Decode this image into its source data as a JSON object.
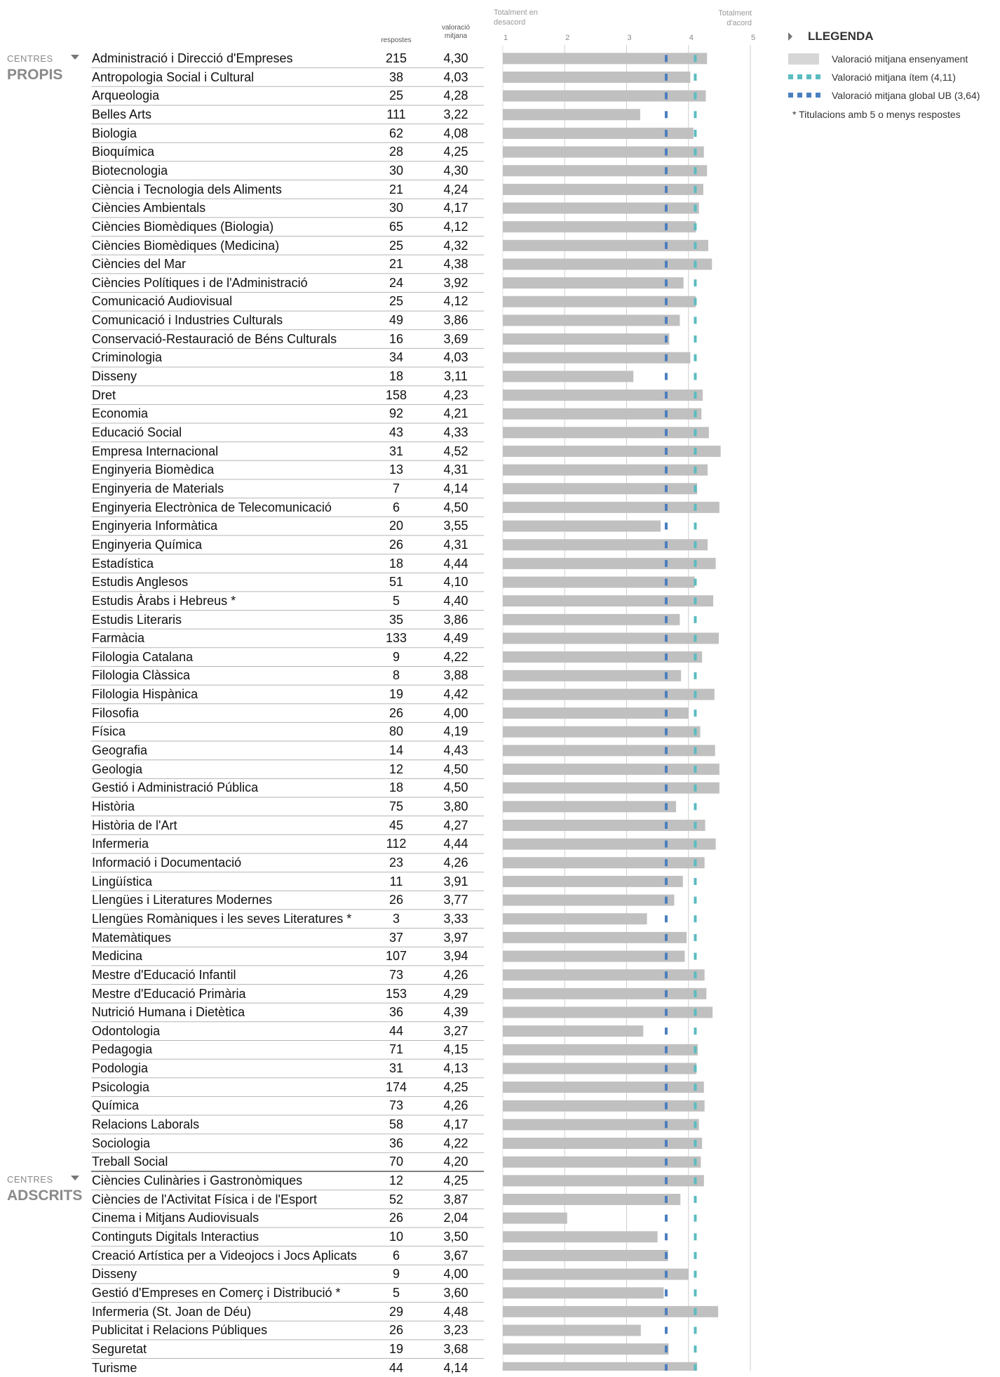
{
  "headers": {
    "respostes": "respostes",
    "valoracio_line1": "valoració",
    "valoracio_line2": "mitjana",
    "left_axis_line1": "Totalment en",
    "left_axis_line2": "desacord",
    "right_axis_line1": "Totalment",
    "right_axis_line2": "d'acord"
  },
  "sections": {
    "propis_small": "CENTRES",
    "propis_big": "PROPIS",
    "adscrits_small": "CENTRES",
    "adscrits_big": "ADSCRITS"
  },
  "legend": {
    "title": "LLEGENDA",
    "bar_label": "Valoració mitjana ensenyament",
    "item_label": "Valoració mitjana ítem (4,11)",
    "global_label": "Valoració mitjana global UB (3,64)",
    "note": "* Titulacions amb 5 o menys respostes"
  },
  "colors": {
    "bar": "#c0c0c0",
    "item_marker": "#5bbcc0",
    "global_marker": "#4b7fbf",
    "grid": "#cfcfcf",
    "separator": "#b5b5b5"
  },
  "chart_data": {
    "type": "bar",
    "orientation": "horizontal",
    "xlim": [
      1,
      5
    ],
    "ticks": [
      "1",
      "2",
      "3",
      "4",
      "5"
    ],
    "item_mean": 4.11,
    "global_mean": 3.64,
    "groups": [
      {
        "name": "PROPIS",
        "rows": [
          {
            "name": "Administració i Direcció d'Empreses",
            "n": "215",
            "mean": "4,30",
            "value": 4.3
          },
          {
            "name": "Antropologia Social i Cultural",
            "n": "38",
            "mean": "4,03",
            "value": 4.03
          },
          {
            "name": "Arqueologia",
            "n": "25",
            "mean": "4,28",
            "value": 4.28
          },
          {
            "name": "Belles Arts",
            "n": "111",
            "mean": "3,22",
            "value": 3.22
          },
          {
            "name": "Biologia",
            "n": "62",
            "mean": "4,08",
            "value": 4.08
          },
          {
            "name": "Bioquímica",
            "n": "28",
            "mean": "4,25",
            "value": 4.25
          },
          {
            "name": "Biotecnologia",
            "n": "30",
            "mean": "4,30",
            "value": 4.3
          },
          {
            "name": "Ciència i Tecnologia dels Aliments",
            "n": "21",
            "mean": "4,24",
            "value": 4.24
          },
          {
            "name": "Ciències Ambientals",
            "n": "30",
            "mean": "4,17",
            "value": 4.17
          },
          {
            "name": "Ciències Biomèdiques (Biologia)",
            "n": "65",
            "mean": "4,12",
            "value": 4.12
          },
          {
            "name": "Ciències Biomèdiques (Medicina)",
            "n": "25",
            "mean": "4,32",
            "value": 4.32
          },
          {
            "name": "Ciències del Mar",
            "n": "21",
            "mean": "4,38",
            "value": 4.38
          },
          {
            "name": "Ciències Polítiques i de l'Administració",
            "n": "24",
            "mean": "3,92",
            "value": 3.92
          },
          {
            "name": "Comunicació Audiovisual",
            "n": "25",
            "mean": "4,12",
            "value": 4.12
          },
          {
            "name": "Comunicació i Industries Culturals",
            "n": "49",
            "mean": "3,86",
            "value": 3.86
          },
          {
            "name": "Conservació-Restauració de Béns Culturals",
            "n": "16",
            "mean": "3,69",
            "value": 3.69
          },
          {
            "name": "Criminologia",
            "n": "34",
            "mean": "4,03",
            "value": 4.03
          },
          {
            "name": "Disseny",
            "n": "18",
            "mean": "3,11",
            "value": 3.11
          },
          {
            "name": "Dret",
            "n": "158",
            "mean": "4,23",
            "value": 4.23
          },
          {
            "name": "Economia",
            "n": "92",
            "mean": "4,21",
            "value": 4.21
          },
          {
            "name": "Educació Social",
            "n": "43",
            "mean": "4,33",
            "value": 4.33
          },
          {
            "name": "Empresa Internacional",
            "n": "31",
            "mean": "4,52",
            "value": 4.52
          },
          {
            "name": "Enginyeria Biomèdica",
            "n": "13",
            "mean": "4,31",
            "value": 4.31
          },
          {
            "name": "Enginyeria de Materials",
            "n": "7",
            "mean": "4,14",
            "value": 4.14
          },
          {
            "name": "Enginyeria Electrònica de Telecomunicació",
            "n": "6",
            "mean": "4,50",
            "value": 4.5
          },
          {
            "name": "Enginyeria Informàtica",
            "n": "20",
            "mean": "3,55",
            "value": 3.55
          },
          {
            "name": "Enginyeria Química",
            "n": "26",
            "mean": "4,31",
            "value": 4.31
          },
          {
            "name": "Estadística",
            "n": "18",
            "mean": "4,44",
            "value": 4.44
          },
          {
            "name": "Estudis Anglesos",
            "n": "51",
            "mean": "4,10",
            "value": 4.1
          },
          {
            "name": "Estudis Àrabs i Hebreus *",
            "n": "5",
            "mean": "4,40",
            "value": 4.4
          },
          {
            "name": "Estudis Literaris",
            "n": "35",
            "mean": "3,86",
            "value": 3.86
          },
          {
            "name": "Farmàcia",
            "n": "133",
            "mean": "4,49",
            "value": 4.49
          },
          {
            "name": "Filologia Catalana",
            "n": "9",
            "mean": "4,22",
            "value": 4.22
          },
          {
            "name": "Filologia Clàssica",
            "n": "8",
            "mean": "3,88",
            "value": 3.88
          },
          {
            "name": "Filologia Hispànica",
            "n": "19",
            "mean": "4,42",
            "value": 4.42
          },
          {
            "name": "Filosofia",
            "n": "26",
            "mean": "4,00",
            "value": 4.0
          },
          {
            "name": "Física",
            "n": "80",
            "mean": "4,19",
            "value": 4.19
          },
          {
            "name": "Geografia",
            "n": "14",
            "mean": "4,43",
            "value": 4.43
          },
          {
            "name": "Geologia",
            "n": "12",
            "mean": "4,50",
            "value": 4.5
          },
          {
            "name": "Gestió i Administració Pública",
            "n": "18",
            "mean": "4,50",
            "value": 4.5
          },
          {
            "name": "Història",
            "n": "75",
            "mean": "3,80",
            "value": 3.8
          },
          {
            "name": "Història de l'Art",
            "n": "45",
            "mean": "4,27",
            "value": 4.27
          },
          {
            "name": "Infermeria",
            "n": "112",
            "mean": "4,44",
            "value": 4.44
          },
          {
            "name": "Informació i Documentació",
            "n": "23",
            "mean": "4,26",
            "value": 4.26
          },
          {
            "name": "Lingüística",
            "n": "11",
            "mean": "3,91",
            "value": 3.91
          },
          {
            "name": "Llengües i Literatures Modernes",
            "n": "26",
            "mean": "3,77",
            "value": 3.77
          },
          {
            "name": "Llengües Romàniques i les seves Literatures *",
            "n": "3",
            "mean": "3,33",
            "value": 3.33
          },
          {
            "name": "Matemàtiques",
            "n": "37",
            "mean": "3,97",
            "value": 3.97
          },
          {
            "name": "Medicina",
            "n": "107",
            "mean": "3,94",
            "value": 3.94
          },
          {
            "name": "Mestre d'Educació Infantil",
            "n": "73",
            "mean": "4,26",
            "value": 4.26
          },
          {
            "name": "Mestre d'Educació Primària",
            "n": "153",
            "mean": "4,29",
            "value": 4.29
          },
          {
            "name": "Nutrició Humana i Dietètica",
            "n": "36",
            "mean": "4,39",
            "value": 4.39
          },
          {
            "name": "Odontologia",
            "n": "44",
            "mean": "3,27",
            "value": 3.27
          },
          {
            "name": "Pedagogia",
            "n": "71",
            "mean": "4,15",
            "value": 4.15
          },
          {
            "name": "Podologia",
            "n": "31",
            "mean": "4,13",
            "value": 4.13
          },
          {
            "name": "Psicologia",
            "n": "174",
            "mean": "4,25",
            "value": 4.25
          },
          {
            "name": "Química",
            "n": "73",
            "mean": "4,26",
            "value": 4.26
          },
          {
            "name": "Relacions Laborals",
            "n": "58",
            "mean": "4,17",
            "value": 4.17
          },
          {
            "name": "Sociologia",
            "n": "36",
            "mean": "4,22",
            "value": 4.22
          },
          {
            "name": "Treball Social",
            "n": "70",
            "mean": "4,20",
            "value": 4.2
          }
        ]
      },
      {
        "name": "ADSCRITS",
        "rows": [
          {
            "name": "Ciències Culinàries i Gastronòmiques",
            "n": "12",
            "mean": "4,25",
            "value": 4.25
          },
          {
            "name": "Ciències de l'Activitat Física i de l'Esport",
            "n": "52",
            "mean": "3,87",
            "value": 3.87
          },
          {
            "name": "Cinema i Mitjans Audiovisuals",
            "n": "26",
            "mean": "2,04",
            "value": 2.04
          },
          {
            "name": "Continguts Digitals Interactius",
            "n": "10",
            "mean": "3,50",
            "value": 3.5
          },
          {
            "name": "Creació Artística per a Videojocs i Jocs Aplicats",
            "n": "6",
            "mean": "3,67",
            "value": 3.67
          },
          {
            "name": "Disseny",
            "n": "9",
            "mean": "4,00",
            "value": 4.0
          },
          {
            "name": "Gestió d'Empreses en Comerç i Distribució *",
            "n": "5",
            "mean": "3,60",
            "value": 3.6
          },
          {
            "name": "Infermeria (St. Joan de Déu)",
            "n": "29",
            "mean": "4,48",
            "value": 4.48
          },
          {
            "name": "Publicitat i Relacions Públiques",
            "n": "26",
            "mean": "3,23",
            "value": 3.23
          },
          {
            "name": "Seguretat",
            "n": "19",
            "mean": "3,68",
            "value": 3.68
          },
          {
            "name": "Turisme",
            "n": "44",
            "mean": "4,14",
            "value": 4.14
          }
        ]
      }
    ]
  }
}
